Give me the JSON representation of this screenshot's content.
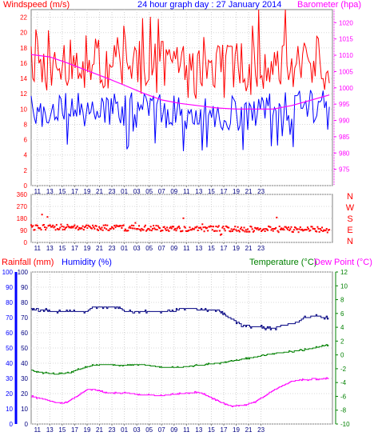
{
  "header": {
    "left_title": "Windspeed (m/s)",
    "center_title": "24 hour graph day : 27 January 2014",
    "right_title": "Barometer (hpa)"
  },
  "lower_header": {
    "rain_label": "Rainfall (mm)",
    "humidity_label": "Humidity (%)",
    "temp_label": "Temperature (°C)",
    "dew_label": "Dew Point (°C)"
  },
  "colors": {
    "wind_gust": "#ff0000",
    "wind_avg": "#0000ff",
    "barometer": "#ff00ff",
    "direction": "#ff0000",
    "humidity": "#000080",
    "temperature": "#008000",
    "dewpoint": "#ff00ff",
    "rain_axis": "#0000ff",
    "temp_axis": "#008000",
    "title_red": "#ff0000",
    "title_blue": "#0000ff",
    "frame": "#808080",
    "grid": "#c8c8c8"
  },
  "x_ticks": [
    "11",
    "13",
    "15",
    "17",
    "19",
    "21",
    "23",
    "01",
    "03",
    "05",
    "07",
    "09",
    "11",
    "13",
    "15",
    "17",
    "19",
    "21",
    "23"
  ],
  "chart_data": [
    {
      "type": "line",
      "name": "wind-barometer",
      "y_left": {
        "ticks": [
          "0",
          "2",
          "4",
          "6",
          "8",
          "10",
          "12",
          "14",
          "16",
          "18",
          "20",
          "22"
        ],
        "range": [
          0,
          23
        ]
      },
      "y_right": {
        "ticks": [
          "975",
          "980",
          "985",
          "990",
          "995",
          "1000",
          "1005",
          "1010",
          "1015",
          "1020"
        ],
        "range": [
          970,
          1024
        ]
      },
      "series": [
        {
          "role": "gust",
          "color": "#ff0000",
          "base": 15.5,
          "amp": 3.6,
          "min": 9,
          "max": 23
        },
        {
          "role": "average",
          "color": "#0000ff",
          "base": 9.8,
          "amp": 2.4,
          "min": 4.5,
          "max": 15
        },
        {
          "role": "barometer",
          "x": [
            10,
            13,
            16,
            19,
            22,
            25,
            28,
            31,
            34,
            37,
            40,
            43,
            46,
            49,
            52,
            55,
            58
          ],
          "values": [
            1010.2,
            1009.5,
            1007.5,
            1005.3,
            1003.1,
            1000.8,
            998.4,
            996.3,
            995.2,
            994.5,
            993.8,
            993.5,
            993.5,
            993.5,
            994.6,
            996.2,
            997.8
          ]
        }
      ]
    },
    {
      "type": "scatter",
      "name": "wind-direction",
      "y_left": {
        "ticks": [
          "0",
          "90",
          "180",
          "270",
          "360"
        ],
        "range": [
          0,
          360
        ]
      },
      "y_right": {
        "ticks": [
          "N",
          "W",
          "S",
          "E",
          "N"
        ]
      },
      "series": [
        {
          "role": "direction",
          "color": "#ff0000",
          "base_start": 115,
          "base_end": 95,
          "spread": 22
        }
      ]
    },
    {
      "type": "line",
      "name": "rain-humidity-temp",
      "y_left": {
        "ticks": [
          "0",
          "10",
          "20",
          "30",
          "40",
          "50",
          "60",
          "70",
          "80",
          "90",
          "100"
        ],
        "range": [
          0,
          100
        ]
      },
      "y_right": {
        "ticks": [
          "-10",
          "-8",
          "-6",
          "-4",
          "-2",
          "0",
          "2",
          "4",
          "6",
          "8",
          "10",
          "12"
        ],
        "range": [
          -10,
          12
        ]
      },
      "series": [
        {
          "role": "humidity",
          "x": [
            10,
            12,
            13,
            19,
            20,
            24,
            25,
            33,
            34,
            36,
            37,
            40,
            41,
            44,
            48,
            49,
            50,
            52,
            53,
            54,
            56,
            57,
            58
          ],
          "values": [
            76,
            75,
            74,
            74,
            77,
            77,
            74,
            74,
            76,
            76,
            75,
            75,
            72,
            65,
            63,
            63,
            64,
            66,
            67,
            70,
            71,
            70,
            70
          ]
        },
        {
          "role": "temperature",
          "x": [
            10,
            12,
            14,
            16,
            18,
            20,
            22,
            25,
            28,
            31,
            34,
            37,
            40,
            43,
            46,
            49,
            52,
            55,
            58
          ],
          "values": [
            -2.3,
            -2.6,
            -2.8,
            -2.6,
            -2.0,
            -1.5,
            -1.4,
            -1.5,
            -1.4,
            -1.8,
            -1.8,
            -1.5,
            -1.2,
            -0.8,
            -0.3,
            0.2,
            0.5,
            0.9,
            1.5
          ]
        },
        {
          "role": "dewpoint",
          "x": [
            10,
            12,
            14,
            15,
            16,
            18,
            19,
            20,
            22,
            25,
            28,
            31,
            34,
            37,
            40,
            42,
            43,
            44,
            46,
            48,
            50,
            52,
            54,
            56,
            58
          ],
          "values": [
            -6.0,
            -6.4,
            -6.9,
            -7.0,
            -6.7,
            -5.6,
            -5.0,
            -5.0,
            -5.5,
            -5.5,
            -5.8,
            -5.9,
            -5.6,
            -5.4,
            -6.6,
            -7.4,
            -7.4,
            -7.3,
            -6.8,
            -5.7,
            -4.6,
            -3.8,
            -3.6,
            -3.5,
            -3.4
          ]
        },
        {
          "role": "rainfall",
          "values": [
            0
          ]
        }
      ]
    }
  ]
}
